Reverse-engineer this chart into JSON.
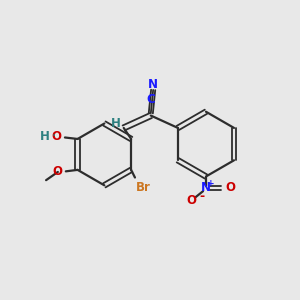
{
  "background_color": "#e8e8e8",
  "bond_color": "#2d2d2d",
  "colors": {
    "N": "#1a1aff",
    "O": "#cc0000",
    "Br": "#cc7722",
    "H": "#2d8080",
    "C_label": "#1a1aff"
  }
}
